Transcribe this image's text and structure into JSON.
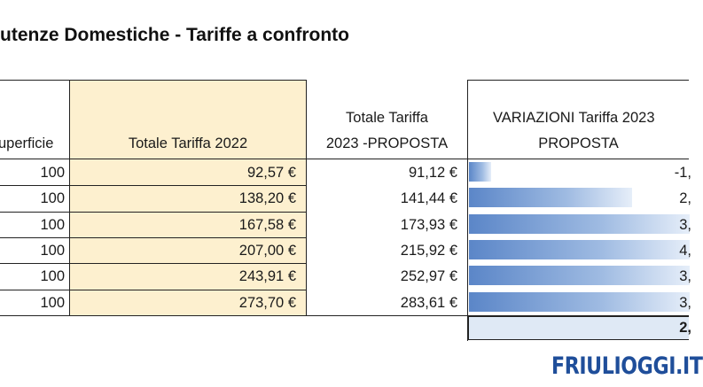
{
  "title": "utenze Domestiche - Tariffe a confronto",
  "headers": {
    "superficie": "uperficie",
    "tariffa_2022": "Totale Tariffa 2022",
    "tariffa_2023_line1": "Totale Tariffa",
    "tariffa_2023_line2": "2023 -PROPOSTA",
    "variazioni_line1": "VARIAZIONI Tariffa 2023",
    "variazioni_line2": "PROPOSTA"
  },
  "rows": [
    {
      "superficie": "100",
      "tariffa_2022": "92,57 €",
      "tariffa_2023": "91,12 €",
      "variazione": "-1,",
      "bar_fraction": 0.1
    },
    {
      "superficie": "100",
      "tariffa_2022": "138,20 €",
      "tariffa_2023": "141,44 €",
      "variazione": "2,",
      "bar_fraction": 0.74
    },
    {
      "superficie": "100",
      "tariffa_2022": "167,58 €",
      "tariffa_2023": "173,93 €",
      "variazione": "3,",
      "bar_fraction": 1.0
    },
    {
      "superficie": "100",
      "tariffa_2022": "207,00 €",
      "tariffa_2023": "215,92 €",
      "variazione": "4,",
      "bar_fraction": 1.0
    },
    {
      "superficie": "100",
      "tariffa_2022": "243,91 €",
      "tariffa_2023": "252,97 €",
      "variazione": "3,",
      "bar_fraction": 1.0
    },
    {
      "superficie": "100",
      "tariffa_2022": "273,70 €",
      "tariffa_2023": "283,61 €",
      "variazione": "3,",
      "bar_fraction": 1.0
    }
  ],
  "total_variazione": "2,",
  "logo": "FRIULIOGGI.IT",
  "colors": {
    "yellow": "#fdf0cf",
    "bar": "#5b86c8",
    "total_bg": "#dfe9f5",
    "logo": "#1f4e9a"
  }
}
